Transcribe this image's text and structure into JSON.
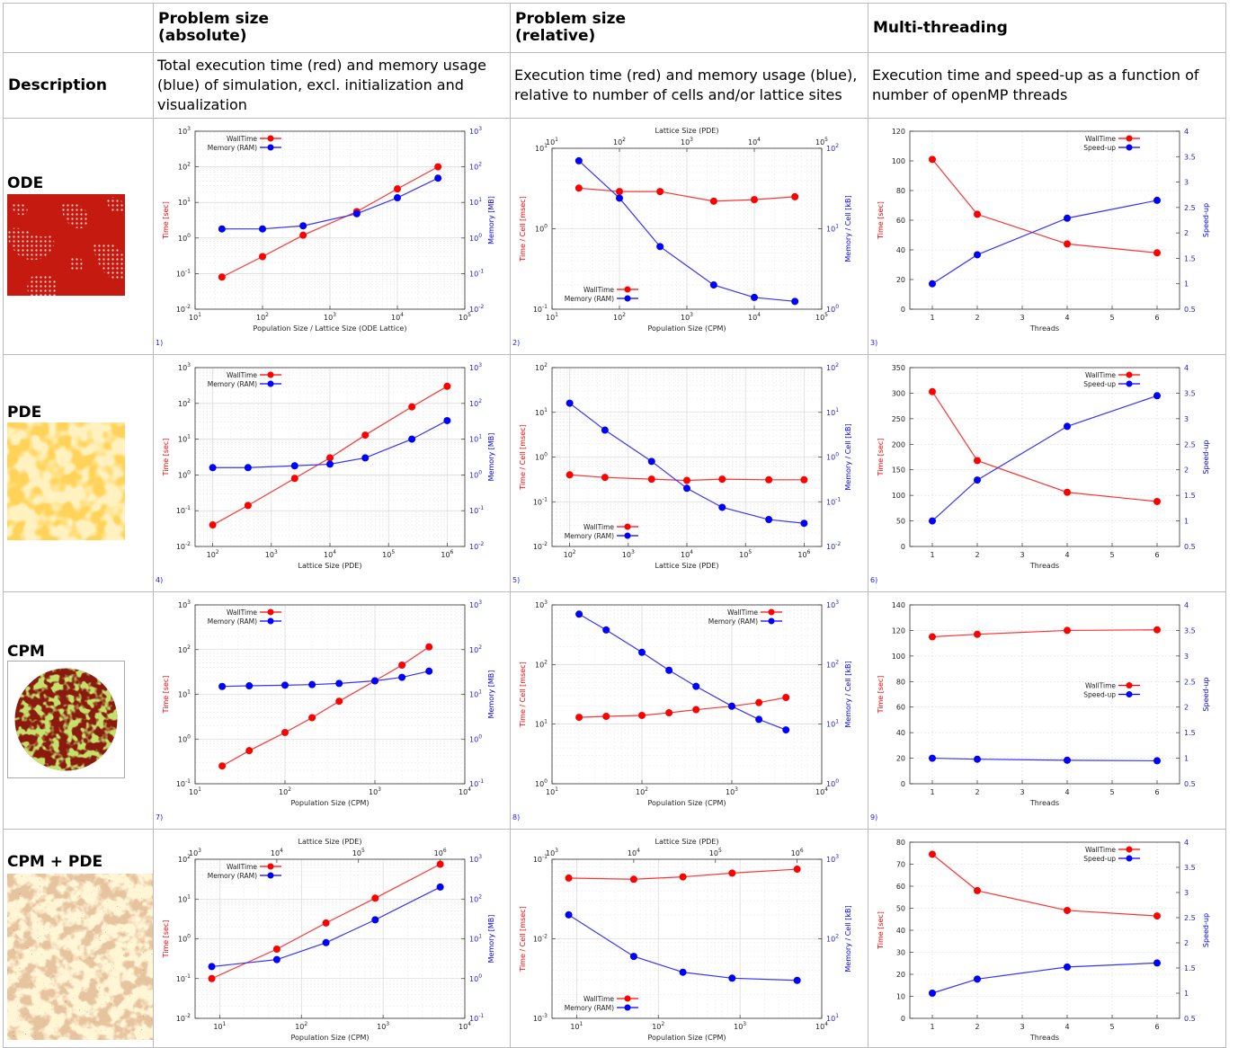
{
  "header": {
    "abs_line1": "Problem size",
    "abs_line2": "(absolute)",
    "rel_line1": "Problem size",
    "rel_line2": "(relative)",
    "mt": "Multi-threading"
  },
  "description": {
    "label": "Description",
    "abs": "Total execution time (red) and memory usage (blue) of simulation, excl. initialization and visualization",
    "rel": "Execution time (red) and memory usage (blue), relative to number of cells and/or lattice sites",
    "mt": "Execution time and speed-up as a function of number of openMP threads"
  },
  "rows": [
    {
      "label": "ODE",
      "thumb": "ode"
    },
    {
      "label": "PDE",
      "thumb": "pde"
    },
    {
      "label": "CPM",
      "thumb": "cpm"
    },
    {
      "label": "CPM + PDE",
      "thumb": "cpmpde"
    }
  ],
  "colors": {
    "red": "#ff0000",
    "blue": "#0000ff",
    "red_line": "#ff3333",
    "blue_line": "#3333ff"
  },
  "chart_data": [
    {
      "id": "c1",
      "type": "line",
      "footnote": "1)",
      "xlog": true,
      "xlim": [
        10,
        100000
      ],
      "xticks": [
        10,
        100,
        1000,
        10000,
        100000
      ],
      "xlabel": "Population Size / Lattice Size (ODE Lattice)",
      "x2label": "",
      "ylog": true,
      "ylim": [
        0.01,
        1000
      ],
      "yticks": [
        0.01,
        0.1,
        1,
        10,
        100,
        1000
      ],
      "ylabel": "Time [sec]",
      "y2log": true,
      "y2lim": [
        0.01,
        1000
      ],
      "y2ticks": [
        0.01,
        0.1,
        1,
        10,
        100,
        1000
      ],
      "y2label": "Memory [MB]",
      "legend": "top-left",
      "series": [
        {
          "name": "WallTime",
          "color": "red",
          "axis": "left",
          "x": [
            25,
            100,
            400,
            2500,
            10000,
            40000
          ],
          "y": [
            0.08,
            0.3,
            1.2,
            5.5,
            24,
            100
          ]
        },
        {
          "name": "Memory (RAM)",
          "color": "blue",
          "axis": "right",
          "x": [
            25,
            100,
            400,
            2500,
            10000,
            40000
          ],
          "y": [
            1.8,
            1.8,
            2.2,
            4.8,
            13.5,
            48
          ]
        }
      ]
    },
    {
      "id": "c2",
      "type": "line",
      "footnote": "2)",
      "xlog": true,
      "xlim": [
        10,
        100000
      ],
      "xticks": [
        10,
        100,
        1000,
        10000,
        100000
      ],
      "xlabel": "Population Size (CPM)",
      "x2label": "Lattice Size (PDE)",
      "x2lim": [
        10,
        100000
      ],
      "x2ticks": [
        10,
        100,
        1000,
        10000,
        100000
      ],
      "ylog": true,
      "ylim": [
        0.1,
        10
      ],
      "yticks": [
        0.1,
        1,
        10
      ],
      "ylabel": "Time / Cell [msec]",
      "y2log": true,
      "y2lim": [
        1,
        100
      ],
      "y2ticks": [
        1,
        10,
        100
      ],
      "y2label": "Memory / Cell [kB]",
      "legend": "bottom-left",
      "series": [
        {
          "name": "WallTime",
          "color": "red",
          "axis": "left",
          "x": [
            25,
            100,
            400,
            2500,
            10000,
            40000
          ],
          "y": [
            3.2,
            2.9,
            2.9,
            2.2,
            2.3,
            2.5
          ]
        },
        {
          "name": "Memory (RAM)",
          "color": "blue",
          "axis": "right",
          "x": [
            25,
            100,
            400,
            2500,
            10000,
            40000
          ],
          "y": [
            70,
            24,
            6,
            2,
            1.4,
            1.25
          ]
        }
      ]
    },
    {
      "id": "c3",
      "type": "line",
      "footnote": "3)",
      "xlog": false,
      "xlim": [
        0.5,
        6.5
      ],
      "xticks": [
        1,
        2,
        3,
        4,
        5,
        6
      ],
      "xlabel": "Threads",
      "x2label": "",
      "ylog": false,
      "ylim": [
        0,
        120
      ],
      "yticks": [
        0,
        20,
        40,
        60,
        80,
        100,
        120
      ],
      "ylabel": "Time [sec]",
      "y2log": false,
      "y2lim": [
        0.5,
        4
      ],
      "y2ticks": [
        0.5,
        1,
        1.5,
        2,
        2.5,
        3,
        3.5,
        4
      ],
      "y2label": "Speed-up",
      "legend": "top-right",
      "series": [
        {
          "name": "WallTime",
          "color": "red",
          "axis": "left",
          "x": [
            1,
            2,
            4,
            6
          ],
          "y": [
            101,
            64,
            44,
            38
          ]
        },
        {
          "name": "Speed-up",
          "color": "blue",
          "axis": "right",
          "x": [
            1,
            2,
            4,
            6
          ],
          "y": [
            1,
            1.57,
            2.29,
            2.64
          ]
        }
      ]
    },
    {
      "id": "c4",
      "type": "line",
      "footnote": "4)",
      "xlog": true,
      "xlim": [
        50,
        2000000
      ],
      "xticks": [
        100,
        1000,
        10000,
        100000,
        1000000
      ],
      "xlabel": "Lattice Size (PDE)",
      "x2label": "",
      "ylog": true,
      "ylim": [
        0.01,
        1000
      ],
      "yticks": [
        0.01,
        0.1,
        1,
        10,
        100,
        1000
      ],
      "ylabel": "Time [sec]",
      "y2log": true,
      "y2lim": [
        0.01,
        1000
      ],
      "y2ticks": [
        0.01,
        0.1,
        1,
        10,
        100,
        1000
      ],
      "y2label": "Memory [MB]",
      "legend": "top-left",
      "series": [
        {
          "name": "WallTime",
          "color": "red",
          "axis": "left",
          "x": [
            100,
            400,
            2500,
            10000,
            40000,
            250000,
            1000000
          ],
          "y": [
            0.04,
            0.14,
            0.8,
            3,
            13,
            80,
            300
          ]
        },
        {
          "name": "Memory (RAM)",
          "color": "blue",
          "axis": "right",
          "x": [
            100,
            400,
            2500,
            10000,
            40000,
            250000,
            1000000
          ],
          "y": [
            1.6,
            1.6,
            1.8,
            2,
            3,
            10,
            33
          ]
        }
      ]
    },
    {
      "id": "c5",
      "type": "line",
      "footnote": "5)",
      "xlog": true,
      "xlim": [
        50,
        2000000
      ],
      "xticks": [
        100,
        1000,
        10000,
        100000,
        1000000
      ],
      "xlabel": "Lattice Size (PDE)",
      "x2label": "",
      "ylog": true,
      "ylim": [
        0.01,
        100
      ],
      "yticks": [
        0.01,
        0.1,
        1,
        10,
        100
      ],
      "ylabel": "Time / Cell [msec]",
      "y2log": true,
      "y2lim": [
        0.01,
        100
      ],
      "y2ticks": [
        0.01,
        0.1,
        1,
        10,
        100
      ],
      "y2label": "Memory / Cell [kB]",
      "legend": "bottom-left",
      "series": [
        {
          "name": "WallTime",
          "color": "red",
          "axis": "left",
          "x": [
            100,
            400,
            2500,
            10000,
            40000,
            250000,
            1000000
          ],
          "y": [
            0.4,
            0.35,
            0.32,
            0.3,
            0.32,
            0.31,
            0.31
          ]
        },
        {
          "name": "Memory (RAM)",
          "color": "blue",
          "axis": "right",
          "x": [
            100,
            400,
            2500,
            10000,
            40000,
            250000,
            1000000
          ],
          "y": [
            16,
            4,
            0.8,
            0.2,
            0.075,
            0.04,
            0.033
          ]
        }
      ]
    },
    {
      "id": "c6",
      "type": "line",
      "footnote": "6)",
      "xlog": false,
      "xlim": [
        0.5,
        6.5
      ],
      "xticks": [
        1,
        2,
        3,
        4,
        5,
        6
      ],
      "xlabel": "Threads",
      "x2label": "",
      "ylog": false,
      "ylim": [
        0,
        350
      ],
      "yticks": [
        0,
        50,
        100,
        150,
        200,
        250,
        300,
        350
      ],
      "ylabel": "Time [sec]",
      "y2log": false,
      "y2lim": [
        0.5,
        4
      ],
      "y2ticks": [
        0.5,
        1,
        1.5,
        2,
        2.5,
        3,
        3.5,
        4
      ],
      "y2label": "Speed-up",
      "legend": "top-right",
      "series": [
        {
          "name": "WallTime",
          "color": "red",
          "axis": "left",
          "x": [
            1,
            2,
            4,
            6
          ],
          "y": [
            303,
            168,
            106,
            88
          ]
        },
        {
          "name": "Speed-up",
          "color": "blue",
          "axis": "right",
          "x": [
            1,
            2,
            4,
            6
          ],
          "y": [
            1,
            1.8,
            2.85,
            3.45
          ]
        }
      ]
    },
    {
      "id": "c7",
      "type": "line",
      "footnote": "7)",
      "xlog": true,
      "xlim": [
        10,
        10000
      ],
      "xticks": [
        10,
        100,
        1000,
        10000
      ],
      "xlabel": "Population Size (CPM)",
      "x2label": "",
      "ylog": true,
      "ylim": [
        0.1,
        1000
      ],
      "yticks": [
        0.1,
        1,
        10,
        100,
        1000
      ],
      "ylabel": "Time [sec]",
      "y2log": true,
      "y2lim": [
        0.1,
        1000
      ],
      "y2ticks": [
        0.1,
        1,
        10,
        100,
        1000
      ],
      "y2label": "Memory [MB]",
      "legend": "top-left",
      "series": [
        {
          "name": "WallTime",
          "color": "red",
          "axis": "left",
          "x": [
            20,
            40,
            100,
            200,
            400,
            1000,
            2000,
            4000
          ],
          "y": [
            0.25,
            0.55,
            1.4,
            3,
            7,
            20,
            45,
            115
          ]
        },
        {
          "name": "Memory (RAM)",
          "color": "blue",
          "axis": "right",
          "x": [
            20,
            40,
            100,
            200,
            400,
            1000,
            2000,
            4000
          ],
          "y": [
            15,
            15.5,
            16,
            16.5,
            17.5,
            20,
            24,
            33
          ]
        }
      ]
    },
    {
      "id": "c8",
      "type": "line",
      "footnote": "8)",
      "xlog": true,
      "xlim": [
        10,
        10000
      ],
      "xticks": [
        10,
        100,
        1000,
        10000
      ],
      "xlabel": "Population Size (CPM)",
      "x2label": "",
      "ylog": true,
      "ylim": [
        1,
        1000
      ],
      "yticks": [
        1,
        10,
        100,
        1000
      ],
      "ylabel": "Time / Cell [msec]",
      "y2log": true,
      "y2lim": [
        1,
        1000
      ],
      "y2ticks": [
        1,
        10,
        100,
        1000
      ],
      "y2label": "Memory / Cell [kB]",
      "legend": "top-right",
      "series": [
        {
          "name": "WallTime",
          "color": "red",
          "axis": "left",
          "x": [
            20,
            40,
            100,
            200,
            400,
            1000,
            2000,
            4000
          ],
          "y": [
            13,
            13.5,
            14,
            15.5,
            17.5,
            20,
            23,
            28
          ]
        },
        {
          "name": "Memory (RAM)",
          "color": "blue",
          "axis": "right",
          "x": [
            20,
            40,
            100,
            200,
            400,
            1000,
            2000,
            4000
          ],
          "y": [
            700,
            380,
            160,
            80,
            43,
            20,
            12,
            8
          ]
        }
      ]
    },
    {
      "id": "c9",
      "type": "line",
      "footnote": "9)",
      "xlog": false,
      "xlim": [
        0.5,
        6.5
      ],
      "xticks": [
        1,
        2,
        3,
        4,
        5,
        6
      ],
      "xlabel": "Threads",
      "x2label": "",
      "ylog": false,
      "ylim": [
        0,
        140
      ],
      "yticks": [
        0,
        20,
        40,
        60,
        80,
        100,
        120,
        140
      ],
      "ylabel": "Time [sec]",
      "y2log": false,
      "y2lim": [
        0.5,
        4
      ],
      "y2ticks": [
        0.5,
        1,
        1.5,
        2,
        2.5,
        3,
        3.5,
        4
      ],
      "y2label": "Speed-up",
      "legend": "middle-right",
      "series": [
        {
          "name": "WallTime",
          "color": "red",
          "axis": "left",
          "x": [
            1,
            2,
            4,
            6
          ],
          "y": [
            115,
            117,
            120,
            120.5
          ]
        },
        {
          "name": "Speed-up",
          "color": "blue",
          "axis": "right",
          "x": [
            1,
            2,
            4,
            6
          ],
          "y": [
            1,
            0.98,
            0.96,
            0.95
          ]
        }
      ]
    },
    {
      "id": "c10",
      "type": "line",
      "footnote": "",
      "xlog": true,
      "xlim": [
        5,
        10000
      ],
      "xticks": [
        10,
        100,
        1000,
        10000
      ],
      "xlabel": "Population Size (CPM)",
      "x2label": "Lattice Size (PDE)",
      "x2lim": [
        1000,
        2000000
      ],
      "x2ticks": [
        1000,
        10000,
        100000,
        1000000
      ],
      "ylog": true,
      "ylim": [
        0.01,
        100
      ],
      "yticks": [
        0.01,
        0.1,
        1,
        10,
        100
      ],
      "ylabel": "Time [sec]",
      "y2log": true,
      "y2lim": [
        0.1,
        1000
      ],
      "y2ticks": [
        0.1,
        1,
        10,
        100,
        1000
      ],
      "y2label": "Memory [MB]",
      "legend": "top-left",
      "series": [
        {
          "name": "WallTime",
          "color": "red",
          "axis": "left",
          "x": [
            8,
            50,
            200,
            800,
            5000
          ],
          "y": [
            0.1,
            0.55,
            2.5,
            10.5,
            75
          ]
        },
        {
          "name": "Memory (RAM)",
          "color": "blue",
          "axis": "right",
          "x": [
            8,
            50,
            200,
            800,
            5000
          ],
          "y": [
            2,
            3,
            8,
            30,
            200
          ]
        }
      ]
    },
    {
      "id": "c11",
      "type": "line",
      "footnote": "",
      "xlog": true,
      "xlim": [
        5,
        10000
      ],
      "xticks": [
        10,
        100,
        1000,
        10000
      ],
      "xlabel": "Population Size (CPM)",
      "x2label": "Lattice Size (PDE)",
      "x2lim": [
        1000,
        2000000
      ],
      "x2ticks": [
        1000,
        10000,
        100000,
        1000000
      ],
      "ylog": true,
      "ylim": [
        0.001,
        0.1
      ],
      "yticks": [
        0.001,
        0.01,
        0.1
      ],
      "ylabel": "Time / Cell [msec]",
      "y2log": true,
      "y2lim": [
        10,
        1000
      ],
      "y2ticks": [
        10,
        100,
        1000
      ],
      "y2label": "Memory / Cell [kB]",
      "legend": "bottom-left",
      "series": [
        {
          "name": "WallTime",
          "color": "red",
          "axis": "left",
          "x": [
            8,
            50,
            200,
            800,
            5000
          ],
          "y": [
            0.058,
            0.056,
            0.06,
            0.067,
            0.075
          ]
        },
        {
          "name": "Memory (RAM)",
          "color": "blue",
          "axis": "right",
          "x": [
            8,
            50,
            200,
            800,
            5000
          ],
          "y": [
            200,
            60,
            38,
            32,
            30
          ]
        }
      ]
    },
    {
      "id": "c12",
      "type": "line",
      "footnote": "",
      "xlog": false,
      "xlim": [
        0.5,
        6.5
      ],
      "xticks": [
        1,
        2,
        3,
        4,
        5,
        6
      ],
      "xlabel": "Threads",
      "x2label": "",
      "ylog": false,
      "ylim": [
        0,
        80
      ],
      "yticks": [
        0,
        10,
        20,
        30,
        40,
        50,
        60,
        70,
        80
      ],
      "ylabel": "Time [sec]",
      "y2log": false,
      "y2lim": [
        0.5,
        4
      ],
      "y2ticks": [
        0.5,
        1,
        1.5,
        2,
        2.5,
        3,
        3.5,
        4
      ],
      "y2label": "Speed-up",
      "legend": "top-right",
      "series": [
        {
          "name": "WallTime",
          "color": "red",
          "axis": "left",
          "x": [
            1,
            2,
            4,
            6
          ],
          "y": [
            74.5,
            58,
            49,
            46.5
          ]
        },
        {
          "name": "Speed-up",
          "color": "blue",
          "axis": "right",
          "x": [
            1,
            2,
            4,
            6
          ],
          "y": [
            1,
            1.28,
            1.52,
            1.6
          ]
        }
      ]
    }
  ]
}
